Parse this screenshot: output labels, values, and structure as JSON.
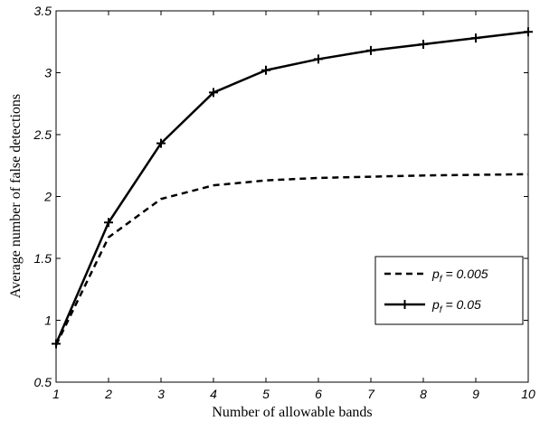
{
  "chart_data": {
    "type": "line",
    "xlabel": "Number of allowable bands",
    "ylabel": "Average number of false detections",
    "x": [
      1,
      2,
      3,
      4,
      5,
      6,
      7,
      8,
      9,
      10
    ],
    "xlim": [
      1,
      10
    ],
    "ylim": [
      0.5,
      3.5
    ],
    "xticks": [
      "1",
      "2",
      "3",
      "4",
      "5",
      "6",
      "7",
      "8",
      "9",
      "10"
    ],
    "yticks": [
      "0.5",
      "1",
      "1.5",
      "2",
      "2.5",
      "3",
      "3.5"
    ],
    "grid": false,
    "legend_position": "right-middle",
    "series": [
      {
        "name": "p_f = 0.005",
        "name_main": "p",
        "name_sub": "f",
        "name_rest": " = 0.005",
        "style": "dashed",
        "marker": "none",
        "color": "#000000",
        "values": [
          0.8,
          1.67,
          1.98,
          2.09,
          2.13,
          2.15,
          2.16,
          2.17,
          2.175,
          2.18
        ]
      },
      {
        "name": "p_f = 0.05",
        "name_main": "p",
        "name_sub": "f",
        "name_rest": " = 0.05",
        "style": "solid",
        "marker": "plus",
        "color": "#000000",
        "values": [
          0.81,
          1.79,
          2.43,
          2.84,
          3.02,
          3.11,
          3.18,
          3.23,
          3.28,
          3.33
        ]
      }
    ]
  }
}
